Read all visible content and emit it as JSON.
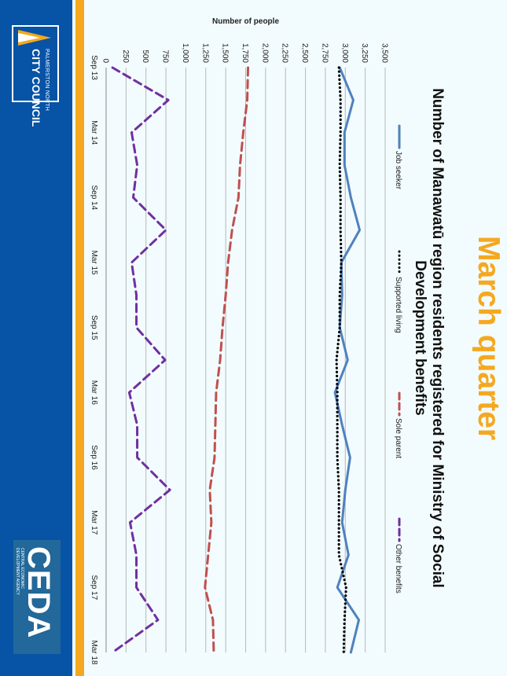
{
  "page": {
    "title": "March quarter",
    "accent_color": "#f5a81f",
    "band_color": "#0753a6"
  },
  "logos": {
    "pncc": {
      "line1": "PALMERSTON NORTH",
      "line2": "CITY COUNCIL"
    },
    "ceda": {
      "big": "CEDA",
      "line1": "CENTRAL ECONOMIC",
      "line2": "DEVELOPMENT AGENCY"
    }
  },
  "chart_data": {
    "type": "line",
    "title": "Number of Manawatū region residents registered for Ministry of Social Development benefits",
    "xlabel": "",
    "ylabel": "Number of people",
    "ylim": [
      0,
      3500
    ],
    "yticks": [
      0,
      250,
      500,
      750,
      1000,
      1250,
      1500,
      1750,
      2000,
      2250,
      2500,
      2750,
      3000,
      3250,
      3500
    ],
    "ytick_labels": [
      "0",
      "250",
      "500",
      "750",
      "1,000",
      "1,250",
      "1,500",
      "1,750",
      "2,000",
      "2,250",
      "2,500",
      "2,750",
      "3,000",
      "3,250",
      "3,500"
    ],
    "x_tick_labels": [
      "Sep 13",
      "Mar 14",
      "Sep 14",
      "Mar 15",
      "Sep 15",
      "Mar 16",
      "Sep 16",
      "Mar 17",
      "Sep 17",
      "Mar 18"
    ],
    "x_tick_every": 26,
    "x_count": 235,
    "x_index": [
      0,
      13,
      26,
      39,
      52,
      65,
      78,
      91,
      104,
      117,
      130,
      143,
      156,
      169,
      182,
      195,
      208,
      221,
      234
    ],
    "grid": true,
    "legend": "top",
    "series": [
      {
        "name": "Job seeker",
        "color": "#4f81bd",
        "dash": "solid",
        "values": [
          2930,
          3100,
          2990,
          2990,
          3070,
          3180,
          2950,
          2960,
          2930,
          3030,
          2870,
          2960,
          3060,
          3000,
          2960,
          3040,
          2900,
          3170,
          3070
        ]
      },
      {
        "name": "Supported living",
        "color": "#000000",
        "dash": "dotted",
        "values": [
          2920,
          2940,
          2940,
          2930,
          2940,
          2940,
          2950,
          2930,
          2930,
          2890,
          2900,
          2900,
          2900,
          2920,
          2920,
          2920,
          3010,
          2990,
          2980
        ]
      },
      {
        "name": "Sole parent",
        "color": "#c0504d",
        "dash": "dashed",
        "values": [
          1780,
          1770,
          1720,
          1680,
          1660,
          1580,
          1530,
          1500,
          1460,
          1430,
          1380,
          1370,
          1360,
          1300,
          1320,
          1280,
          1240,
          1340,
          1350
        ]
      },
      {
        "name": "Other benefits",
        "color": "#7030a0",
        "dash": "dashed",
        "values": [
          80,
          780,
          320,
          390,
          340,
          750,
          320,
          380,
          380,
          740,
          290,
          390,
          390,
          800,
          300,
          380,
          380,
          650,
          80
        ]
      }
    ]
  }
}
